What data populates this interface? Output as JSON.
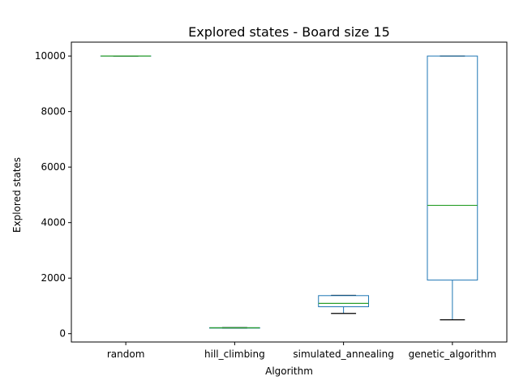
{
  "chart_data": {
    "type": "box",
    "title": "Explored states - Board size 15",
    "xlabel": "Algorithm",
    "ylabel": "Explored states",
    "ylim": [
      -300,
      10500
    ],
    "yticks": [
      0,
      2000,
      4000,
      6000,
      8000,
      10000
    ],
    "categories": [
      "random",
      "hill_climbing",
      "simulated_annealing",
      "genetic_algorithm"
    ],
    "boxes": [
      {
        "min": 10000,
        "q1": 10000,
        "median": 10000,
        "q3": 10000,
        "max": 10000
      },
      {
        "min": 200,
        "q1": 200,
        "median": 210,
        "q3": 215,
        "max": 220
      },
      {
        "min": 730,
        "q1": 970,
        "median": 1090,
        "q3": 1370,
        "max": 1380
      },
      {
        "min": 500,
        "q1": 1930,
        "median": 4620,
        "q3": 10000,
        "max": 10000
      }
    ],
    "grid": false,
    "colors": {
      "box": "#1f77b4",
      "median": "#2ca02c",
      "whisker": "#000000"
    }
  }
}
